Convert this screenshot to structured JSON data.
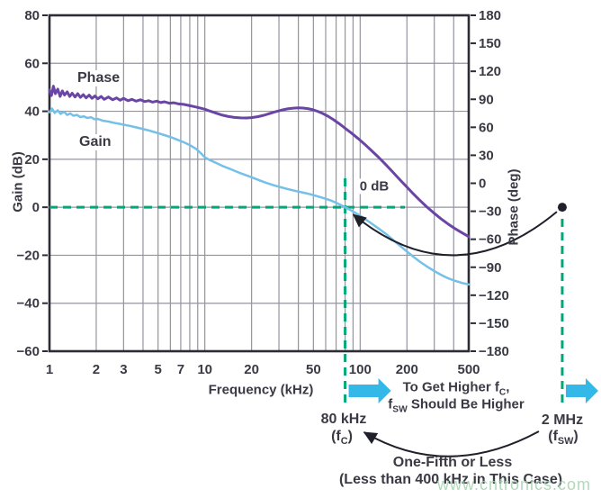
{
  "figure": {
    "xaxis": {
      "title": "Frequency (kHz)",
      "min": 1,
      "max": 500,
      "tick_values": [
        1,
        2,
        3,
        5,
        7,
        10,
        20,
        50,
        100,
        200,
        500
      ],
      "grid_values": [
        2,
        3,
        4,
        5,
        6,
        7,
        8,
        9,
        10,
        20,
        30,
        40,
        50,
        60,
        70,
        80,
        90,
        100,
        200,
        300,
        400
      ]
    },
    "gain_axis": {
      "title": "Gain (dB)",
      "min": -60,
      "max": 80,
      "tick_values": [
        80,
        60,
        40,
        20,
        0,
        -20,
        -40,
        -60
      ]
    },
    "phase_axis": {
      "title": "Phase (deg)",
      "min": -180,
      "max": 180,
      "tick_values": [
        180,
        150,
        120,
        90,
        60,
        30,
        0,
        -30,
        -60,
        -90,
        -120,
        -150,
        -180
      ]
    }
  },
  "chart_data": {
    "type": "line",
    "x_scale": "log",
    "xlabel": "Frequency (kHz)",
    "ylabel_left": "Gain (dB)",
    "ylabel_right": "Phase (deg)",
    "gain_ylim": [
      -60,
      80
    ],
    "phase_ylim": [
      -180,
      180
    ],
    "grid": true,
    "series": [
      {
        "name": "Gain",
        "axis": "gain",
        "color": "#74c0e8",
        "width": 2.5,
        "points": [
          [
            1,
            39.6
          ],
          [
            1.04,
            41.1
          ],
          [
            1.08,
            39.3
          ],
          [
            1.13,
            40.4
          ],
          [
            1.18,
            38.9
          ],
          [
            1.24,
            39.8
          ],
          [
            1.3,
            38.5
          ],
          [
            1.36,
            39.1
          ],
          [
            1.43,
            38.1
          ],
          [
            1.5,
            38.5
          ],
          [
            1.58,
            37.6
          ],
          [
            1.66,
            37.9
          ],
          [
            1.75,
            37.2
          ],
          [
            1.85,
            37.5
          ],
          [
            1.95,
            36.7
          ],
          [
            2.05,
            36.8
          ],
          [
            2.2,
            36.1
          ],
          [
            2.4,
            35.7
          ],
          [
            2.6,
            35.2
          ],
          [
            2.8,
            34.8
          ],
          [
            3.0,
            34.4
          ],
          [
            3.3,
            33.9
          ],
          [
            3.6,
            33.3
          ],
          [
            3.95,
            32.7
          ],
          [
            4.3,
            32.1
          ],
          [
            4.7,
            31.4
          ],
          [
            5.1,
            30.7
          ],
          [
            5.6,
            29.9
          ],
          [
            6.1,
            29.1
          ],
          [
            6.7,
            28.1
          ],
          [
            7.3,
            27.1
          ],
          [
            8.0,
            25.9
          ],
          [
            8.8,
            24.3
          ],
          [
            9.4,
            22.6
          ],
          [
            10,
            20.8
          ],
          [
            10.8,
            19.6
          ],
          [
            11.8,
            18.5
          ],
          [
            13,
            17.2
          ],
          [
            14.5,
            16.0
          ],
          [
            16.5,
            14.5
          ],
          [
            18,
            13.6
          ],
          [
            20,
            12.5
          ],
          [
            22.5,
            11.2
          ],
          [
            25,
            10.1
          ],
          [
            28,
            9.1
          ],
          [
            31,
            8.3
          ],
          [
            35,
            7.4
          ],
          [
            39,
            6.7
          ],
          [
            43,
            6.1
          ],
          [
            48,
            5.4
          ],
          [
            53,
            4.6
          ],
          [
            59,
            3.7
          ],
          [
            65,
            2.8
          ],
          [
            72,
            1.5
          ],
          [
            80,
            0.0
          ],
          [
            88,
            -1.4
          ],
          [
            97,
            -3.0
          ],
          [
            107,
            -4.8
          ],
          [
            118,
            -6.7
          ],
          [
            131,
            -8.8
          ],
          [
            145,
            -10.9
          ],
          [
            160,
            -13.2
          ],
          [
            177,
            -15.6
          ],
          [
            196,
            -18.0
          ],
          [
            216,
            -20.2
          ],
          [
            240,
            -22.5
          ],
          [
            266,
            -24.5
          ],
          [
            295,
            -26.3
          ],
          [
            330,
            -28.1
          ],
          [
            368,
            -29.6
          ],
          [
            410,
            -30.7
          ],
          [
            455,
            -31.6
          ],
          [
            500,
            -32.2
          ]
        ]
      },
      {
        "name": "Phase",
        "axis": "phase",
        "color": "#6a45a4",
        "width": 3,
        "points": [
          [
            1,
            100
          ],
          [
            1.03,
            94
          ],
          [
            1.06,
            104
          ],
          [
            1.09,
            96
          ],
          [
            1.13,
            101
          ],
          [
            1.17,
            93
          ],
          [
            1.21,
            99
          ],
          [
            1.25,
            94.5
          ],
          [
            1.3,
            98
          ],
          [
            1.35,
            93
          ],
          [
            1.4,
            96.5
          ],
          [
            1.46,
            92.5
          ],
          [
            1.52,
            96
          ],
          [
            1.58,
            92
          ],
          [
            1.65,
            95
          ],
          [
            1.72,
            91.5
          ],
          [
            1.8,
            94.5
          ],
          [
            1.88,
            91
          ],
          [
            1.96,
            93.5
          ],
          [
            2.05,
            90.5
          ],
          [
            2.15,
            93
          ],
          [
            2.25,
            90
          ],
          [
            2.4,
            92.5
          ],
          [
            2.55,
            89.5
          ],
          [
            2.7,
            91.5
          ],
          [
            2.85,
            89
          ],
          [
            3.0,
            91
          ],
          [
            3.2,
            88.5
          ],
          [
            3.4,
            90
          ],
          [
            3.6,
            88
          ],
          [
            3.85,
            89.5
          ],
          [
            4.1,
            87.5
          ],
          [
            4.35,
            88.5
          ],
          [
            4.6,
            87
          ],
          [
            4.9,
            88
          ],
          [
            5.2,
            86.5
          ],
          [
            5.5,
            87.3
          ],
          [
            5.9,
            85.8
          ],
          [
            6.3,
            86.3
          ],
          [
            6.8,
            85
          ],
          [
            7.3,
            84.5
          ],
          [
            7.9,
            83.4
          ],
          [
            8.5,
            82.2
          ],
          [
            9.2,
            80.9
          ],
          [
            10,
            79.3
          ],
          [
            10.9,
            77.1
          ],
          [
            11.9,
            75.0
          ],
          [
            13,
            73.0
          ],
          [
            14.2,
            71.5
          ],
          [
            15.5,
            70.6
          ],
          [
            17,
            70.1
          ],
          [
            18.5,
            70.0
          ],
          [
            20,
            70.4
          ],
          [
            22,
            71.4
          ],
          [
            24,
            72.9
          ],
          [
            26,
            74.6
          ],
          [
            28.5,
            76.6
          ],
          [
            31,
            78.3
          ],
          [
            34,
            79.7
          ],
          [
            37,
            80.5
          ],
          [
            40,
            80.8
          ],
          [
            43,
            80.6
          ],
          [
            46,
            80.0
          ],
          [
            49,
            79.0
          ],
          [
            53,
            77.2
          ],
          [
            57,
            75.0
          ],
          [
            62,
            71.9
          ],
          [
            67,
            68.4
          ],
          [
            73,
            64.1
          ],
          [
            80,
            59.0
          ],
          [
            88,
            53.8
          ],
          [
            97,
            48.0
          ],
          [
            107,
            41.8
          ],
          [
            118,
            35.2
          ],
          [
            131,
            28.0
          ],
          [
            145,
            20.6
          ],
          [
            160,
            13.0
          ],
          [
            177,
            5.2
          ],
          [
            196,
            -2.6
          ],
          [
            216,
            -10.0
          ],
          [
            240,
            -17.7
          ],
          [
            266,
            -24.7
          ],
          [
            295,
            -31.2
          ],
          [
            330,
            -37.8
          ],
          [
            368,
            -43.6
          ],
          [
            410,
            -48.8
          ],
          [
            455,
            -53.3
          ],
          [
            500,
            -57.2
          ]
        ]
      }
    ]
  },
  "annotations": {
    "zero_db_label": "0 dB",
    "crossover_freq_khz": 80,
    "fsw_freq_khz": 2000,
    "fc_label": "80 kHz",
    "fc_sub": "(f_{C})",
    "fsw_label": "2 MHz",
    "fsw_sub": "(f_{SW})",
    "note_higher_line1": "To Get Higher f_{C},",
    "note_higher_line2": "f_{SW} Should Be Higher",
    "note_fifth_line1": "One-Fifth or Less",
    "note_fifth_line2": "(Less than 400 kHz in This Case)",
    "watermark": "www.cntronics.com"
  },
  "colors": {
    "accent_green": "#00a878",
    "accent_cyan": "#33b8e8",
    "gain_curve": "#74c0e8",
    "phase_curve": "#6a45a4",
    "watermark_green": "#a5d2ae",
    "ink": "#3a3a45"
  }
}
